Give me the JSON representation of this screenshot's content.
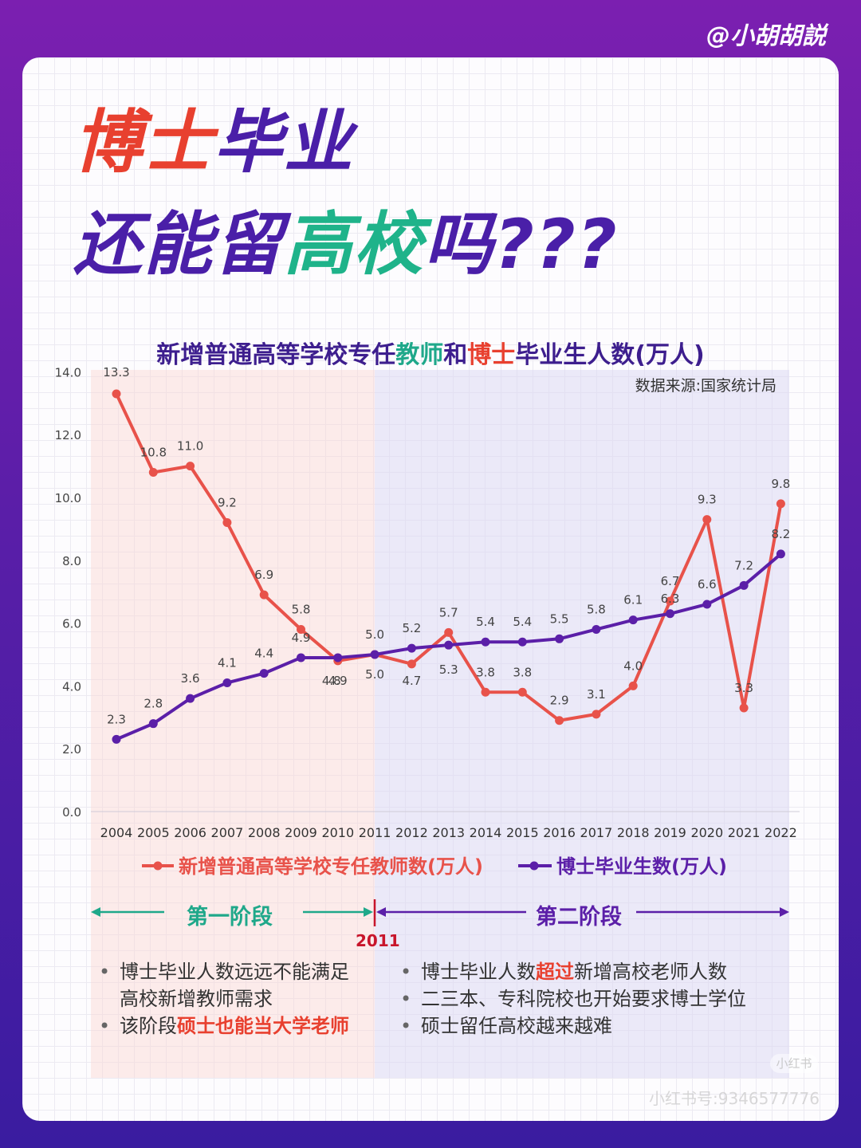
{
  "handle": "@小胡胡説",
  "title": {
    "line1_red": "博士",
    "line1_purple": "毕业",
    "line2_purple_a": "还能留",
    "line2_green": "高校",
    "line2_purple_b": "吗???"
  },
  "subtitle": {
    "part1": "新增普通高等学校专任",
    "part2": "教师",
    "part3": "和",
    "part4": "博士",
    "part5": "毕业生人数(万人)"
  },
  "colors": {
    "teacher": "#e8524a",
    "phd": "#5b1fa8",
    "teal": "#1fa88a",
    "divider": "#c8152b"
  },
  "chart_data": {
    "type": "line",
    "title": "新增普通高等学校专任教师和博士毕业生人数(万人)",
    "source": "数据来源:国家统计局",
    "categories": [
      "2004",
      "2005",
      "2006",
      "2007",
      "2008",
      "2009",
      "2010",
      "2011",
      "2012",
      "2013",
      "2014",
      "2015",
      "2016",
      "2017",
      "2018",
      "2019",
      "2020",
      "2021",
      "2022"
    ],
    "yticks": [
      "0.0",
      "2.0",
      "4.0",
      "6.0",
      "8.0",
      "10.0",
      "12.0",
      "14.0"
    ],
    "ylim": [
      0,
      14
    ],
    "series": [
      {
        "name": "新增普通高等学校专任教师数(万人)",
        "color": "#e8524a",
        "values": [
          13.3,
          10.8,
          11.0,
          9.2,
          6.9,
          5.8,
          4.8,
          5.0,
          4.7,
          5.7,
          3.8,
          3.8,
          2.9,
          3.1,
          4.0,
          6.7,
          9.3,
          3.3,
          9.8
        ],
        "labels": [
          "13.3",
          "10.8",
          "11.0",
          "9.2",
          "6.9",
          "5.8",
          "4.8",
          "5.0",
          "4.7",
          "5.7",
          "3.8",
          "3.8",
          "2.9",
          "3.1",
          "4.0",
          "6.7",
          "9.3",
          "3.3",
          "9.8"
        ]
      },
      {
        "name": "博士毕业生数(万人)",
        "color": "#5b1fa8",
        "values": [
          2.3,
          2.8,
          3.6,
          4.1,
          4.4,
          4.9,
          4.9,
          5.0,
          5.2,
          5.3,
          5.4,
          5.4,
          5.5,
          5.8,
          6.1,
          6.3,
          6.6,
          7.2,
          8.2
        ],
        "labels": [
          "2.3",
          "2.8",
          "3.6",
          "4.1",
          "4.4",
          "4.9",
          "4.9",
          "5.0",
          "5.2",
          "5.3",
          "5.4",
          "5.4",
          "5.5",
          "5.8",
          "6.1",
          "6.3",
          "6.6",
          "7.2",
          "8.2"
        ]
      }
    ],
    "legend": [
      "新增普通高等学校专任教师数(万人)",
      "博士毕业生数(万人)"
    ]
  },
  "phases": {
    "phase1": "第一阶段",
    "phase2": "第二阶段",
    "divider_year": "2011"
  },
  "bullets_left": {
    "b1_line1": "博士毕业人数远远不能满足",
    "b1_line2": "高校新增教师需求",
    "b2_pre": "该阶段",
    "b2_hl": "硕士也能当大学老师"
  },
  "bullets_right": {
    "b1_pre": "博士毕业人数",
    "b1_hl": "超过",
    "b1_post": "新增高校老师人数",
    "b2": "二三本、专科院校也开始要求博士学位",
    "b3": "硕士留任高校越来越难"
  },
  "watermark": {
    "logo": "小红书",
    "id": "小红书号:9346577776"
  }
}
